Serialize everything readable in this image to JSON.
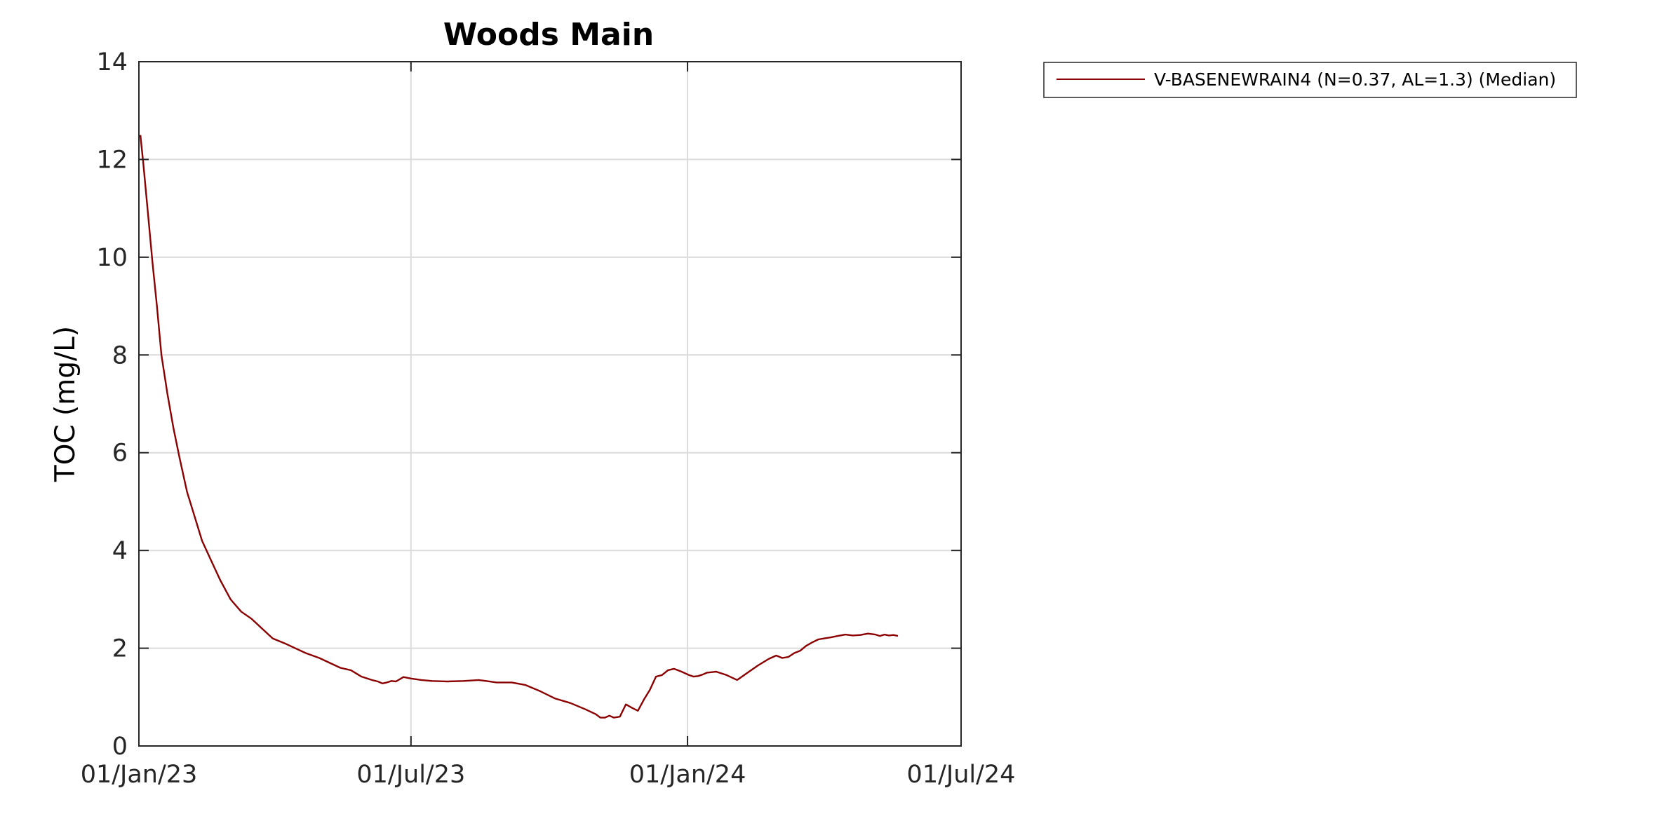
{
  "chart_data": {
    "type": "line",
    "title": "Woods Main",
    "xlabel": "",
    "ylabel": "TOC (mg/L)",
    "x_ticks": [
      "01/Jan/23",
      "01/Jul/23",
      "01/Jan/24",
      "01/Jul/24"
    ],
    "x_tick_dates": [
      "2023-01-01",
      "2023-07-01",
      "2024-01-01",
      "2024-07-01"
    ],
    "xlim": [
      "2023-01-01",
      "2024-07-01"
    ],
    "y_ticks": [
      0,
      2,
      4,
      6,
      8,
      10,
      12,
      14
    ],
    "ylim": [
      0,
      14
    ],
    "grid": true,
    "legend_position": "outside-top-right",
    "series": [
      {
        "name": "V-BASENEWRAIN4 (N=0.37, AL=1.3) (Median)",
        "color": "#8b0000",
        "x": [
          "2023-01-02",
          "2023-01-04",
          "2023-01-07",
          "2023-01-10",
          "2023-01-13",
          "2023-01-16",
          "2023-01-20",
          "2023-01-24",
          "2023-01-28",
          "2023-02-02",
          "2023-02-07",
          "2023-02-12",
          "2023-02-18",
          "2023-02-24",
          "2023-03-03",
          "2023-03-10",
          "2023-03-17",
          "2023-03-24",
          "2023-03-31",
          "2023-04-08",
          "2023-04-15",
          "2023-04-22",
          "2023-05-01",
          "2023-05-08",
          "2023-05-15",
          "2023-05-22",
          "2023-05-29",
          "2023-06-05",
          "2023-06-09",
          "2023-06-12",
          "2023-06-15",
          "2023-06-18",
          "2023-06-21",
          "2023-06-26",
          "2023-07-01",
          "2023-07-08",
          "2023-07-15",
          "2023-07-25",
          "2023-08-05",
          "2023-08-15",
          "2023-08-20",
          "2023-08-27",
          "2023-09-06",
          "2023-09-15",
          "2023-09-25",
          "2023-10-05",
          "2023-10-15",
          "2023-10-25",
          "2023-11-01",
          "2023-11-04",
          "2023-11-07",
          "2023-11-10",
          "2023-11-13",
          "2023-11-17",
          "2023-11-21",
          "2023-11-25",
          "2023-11-29",
          "2023-12-03",
          "2023-12-07",
          "2023-12-11",
          "2023-12-15",
          "2023-12-19",
          "2023-12-23",
          "2023-12-28",
          "2024-01-02",
          "2024-01-05",
          "2024-01-08",
          "2024-01-11",
          "2024-01-14",
          "2024-01-20",
          "2024-01-27",
          "2024-02-03",
          "2024-02-10",
          "2024-02-17",
          "2024-02-24",
          "2024-02-29",
          "2024-03-04",
          "2024-03-08",
          "2024-03-12",
          "2024-03-16",
          "2024-03-20",
          "2024-03-24",
          "2024-03-28",
          "2024-04-01",
          "2024-04-05",
          "2024-04-10",
          "2024-04-15",
          "2024-04-20",
          "2024-04-25",
          "2024-04-30",
          "2024-05-05",
          "2024-05-08",
          "2024-05-11",
          "2024-05-14",
          "2024-05-17",
          "2024-05-20"
        ],
        "y": [
          12.5,
          11.9,
          10.9,
          9.9,
          9.0,
          8.0,
          7.2,
          6.5,
          5.9,
          5.2,
          4.7,
          4.2,
          3.8,
          3.4,
          3.0,
          2.75,
          2.6,
          2.4,
          2.2,
          2.1,
          2.0,
          1.9,
          1.8,
          1.7,
          1.6,
          1.55,
          1.42,
          1.35,
          1.32,
          1.28,
          1.3,
          1.33,
          1.32,
          1.41,
          1.38,
          1.35,
          1.33,
          1.32,
          1.33,
          1.35,
          1.33,
          1.3,
          1.3,
          1.25,
          1.12,
          0.97,
          0.88,
          0.75,
          0.65,
          0.58,
          0.58,
          0.62,
          0.58,
          0.6,
          0.85,
          0.78,
          0.72,
          0.95,
          1.15,
          1.42,
          1.45,
          1.55,
          1.58,
          1.52,
          1.45,
          1.42,
          1.43,
          1.46,
          1.5,
          1.52,
          1.45,
          1.35,
          1.5,
          1.65,
          1.78,
          1.85,
          1.8,
          1.82,
          1.9,
          1.95,
          2.05,
          2.12,
          2.18,
          2.2,
          2.22,
          2.25,
          2.28,
          2.26,
          2.27,
          2.3,
          2.28,
          2.25,
          2.28,
          2.26,
          2.27,
          2.25
        ]
      }
    ]
  }
}
